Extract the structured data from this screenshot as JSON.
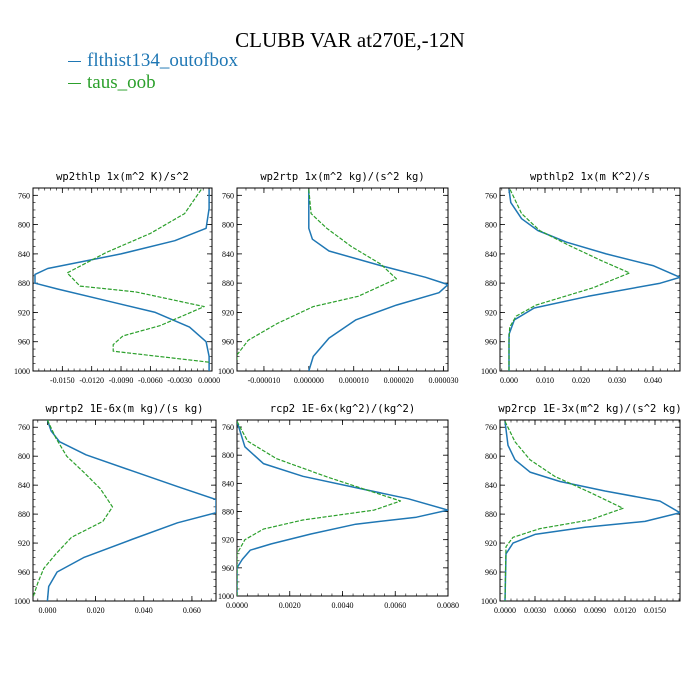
{
  "title": "CLUBB VAR at270E,-12N",
  "legend": [
    {
      "label": "flthist134_outofbox",
      "color": "#1f77b4"
    },
    {
      "label": "taus_oob",
      "color": "#2ca02c"
    }
  ],
  "chart_data": [
    {
      "type": "line",
      "title": "wp2thlp  1x(m^2 K)/s^2",
      "xlim": [
        -0.018,
        0.0003
      ],
      "ylim": [
        1000,
        750
      ],
      "xticks": [
        -0.015,
        -0.012,
        -0.009,
        -0.006,
        -0.003,
        0.0
      ],
      "xtick_labels": [
        "-0.0150",
        "-0.0120",
        "-0.0090",
        "-0.0060",
        "-0.0030",
        "0.0000"
      ],
      "yticks": [
        760,
        800,
        840,
        880,
        920,
        960,
        1000
      ],
      "ytick_labels": [
        "760",
        "800",
        "840",
        "880",
        "920",
        "960",
        "1000"
      ],
      "series": [
        {
          "name": "flthist134_outofbox",
          "x": [
            0.0,
            0.0,
            -0.0003,
            -0.0035,
            -0.009,
            -0.0165,
            -0.0178,
            -0.0178,
            -0.0155,
            -0.0105,
            -0.0055,
            -0.002,
            -0.0003,
            0.0,
            0.0,
            0.0
          ],
          "y": [
            752,
            778,
            805,
            822,
            840,
            860,
            868,
            880,
            888,
            904,
            920,
            940,
            960,
            980,
            995,
            1000
          ]
        },
        {
          "name": "taus_oob",
          "x": [
            -0.0008,
            -0.0025,
            -0.006,
            -0.0105,
            -0.0145,
            -0.0132,
            -0.0075,
            -0.0005,
            -0.005,
            -0.0088,
            -0.0098,
            -0.0098,
            0.0
          ],
          "y": [
            752,
            785,
            812,
            838,
            866,
            884,
            892,
            912,
            938,
            952,
            964,
            973,
            988
          ]
        }
      ]
    },
    {
      "type": "line",
      "title": "wp2rtp  1x(m^2 kg)/(s^2 kg)",
      "xlim": [
        -1.6e-05,
        3.1e-05
      ],
      "ylim": [
        1000,
        750
      ],
      "xticks": [
        -1e-05,
        0.0,
        1e-05,
        2e-05,
        3e-05
      ],
      "xtick_labels": [
        "-0.000010",
        "0.000000",
        "0.000010",
        "0.000020",
        "0.000030"
      ],
      "yticks": [
        760,
        800,
        840,
        880,
        920,
        960,
        1000
      ],
      "ytick_labels": [
        "760",
        "800",
        "840",
        "880",
        "920",
        "960",
        "1000"
      ],
      "series": [
        {
          "name": "flthist134_outofbox",
          "x": [
            0.0,
            0.0,
            0.0,
            8e-07,
            4.5e-06,
            1.6e-05,
            2.6e-05,
            3.1e-05,
            2.9e-05,
            1.95e-05,
            1.05e-05,
            4.5e-06,
            1e-06,
            0.0
          ],
          "y": [
            752,
            780,
            805,
            820,
            836,
            856,
            872,
            882,
            893,
            910,
            930,
            955,
            980,
            1000
          ]
        },
        {
          "name": "taus_oob",
          "x": [
            0.0,
            5e-07,
            4e-06,
            9.5e-06,
            1.6e-05,
            1.95e-05,
            1.1e-05,
            1e-06,
            -7e-06,
            -1.35e-05,
            -1.6e-05,
            -1.6e-05
          ],
          "y": [
            752,
            785,
            805,
            830,
            854,
            874,
            898,
            912,
            935,
            958,
            978,
            985
          ]
        }
      ]
    },
    {
      "type": "line",
      "title": "wpthlp2  1x(m K^2)/s",
      "xlim": [
        -0.0025,
        0.0475
      ],
      "ylim": [
        1000,
        750
      ],
      "xticks": [
        0.0,
        0.01,
        0.02,
        0.03,
        0.04
      ],
      "xtick_labels": [
        "0.000",
        "0.010",
        "0.020",
        "0.030",
        "0.040"
      ],
      "yticks": [
        760,
        800,
        840,
        880,
        920,
        960,
        1000
      ],
      "ytick_labels": [
        "760",
        "800",
        "840",
        "880",
        "920",
        "960",
        "1000"
      ],
      "series": [
        {
          "name": "flthist134_outofbox",
          "x": [
            0.0,
            0.0005,
            0.0035,
            0.008,
            0.016,
            0.027,
            0.04,
            0.0475,
            0.042,
            0.022,
            0.007,
            0.0015,
            0.0,
            0.0
          ],
          "y": [
            752,
            770,
            792,
            808,
            824,
            840,
            856,
            872,
            880,
            898,
            914,
            930,
            950,
            1000
          ]
        },
        {
          "name": "taus_oob",
          "x": [
            0.0003,
            0.0035,
            0.0085,
            0.0165,
            0.026,
            0.0335,
            0.0235,
            0.0075,
            0.002,
            0.0002,
            0.0,
            0.0
          ],
          "y": [
            752,
            785,
            808,
            828,
            850,
            866,
            886,
            910,
            925,
            940,
            960,
            1000
          ]
        }
      ]
    },
    {
      "type": "line",
      "title": "wprtp2  1E-6x(m kg)/(s kg)",
      "xlim": [
        -0.006,
        0.07
      ],
      "ylim": [
        1000,
        750
      ],
      "xticks": [
        0.0,
        0.02,
        0.04,
        0.06
      ],
      "xtick_labels": [
        "0.000",
        "0.020",
        "0.040",
        "0.060"
      ],
      "yticks": [
        760,
        800,
        840,
        880,
        920,
        960,
        1000
      ],
      "ytick_labels": [
        "760",
        "800",
        "840",
        "880",
        "920",
        "960",
        "1000"
      ],
      "series": [
        {
          "name": "flthist134_outofbox",
          "x": [
            0.0,
            0.0015,
            0.005,
            0.016,
            0.035,
            0.054,
            0.07,
            0.07,
            0.054,
            0.035,
            0.015,
            0.004,
            0.0005,
            0.0
          ],
          "y": [
            750,
            765,
            780,
            798,
            820,
            842,
            860,
            878,
            892,
            915,
            940,
            960,
            980,
            1000
          ]
        },
        {
          "name": "taus_oob",
          "x": [
            0.0,
            0.0035,
            0.008,
            0.015,
            0.022,
            0.027,
            0.023,
            0.01,
            0.0035,
            -0.0015,
            -0.004,
            -0.006
          ],
          "y": [
            750,
            775,
            800,
            822,
            845,
            870,
            890,
            912,
            935,
            955,
            975,
            995
          ]
        }
      ]
    },
    {
      "type": "line",
      "title": "rcp2  1E-6x(kg^2)/(kg^2)",
      "xlim": [
        0.0,
        0.008
      ],
      "ylim": [
        1000,
        750
      ],
      "xticks": [
        0.0,
        0.002,
        0.004,
        0.006,
        0.008
      ],
      "xtick_labels": [
        "0.0000",
        "0.0020",
        "0.0040",
        "0.0060",
        "0.0080"
      ],
      "yticks": [
        760,
        800,
        840,
        880,
        920,
        960,
        1000
      ],
      "ytick_labels": [
        "760",
        "800",
        "840",
        "880",
        "920",
        "960",
        "1000"
      ],
      "series": [
        {
          "name": "flthist134_outofbox",
          "x": [
            0.0,
            0.0003,
            0.001,
            0.0025,
            0.0045,
            0.0065,
            0.008,
            0.0068,
            0.0045,
            0.0028,
            0.0013,
            0.0005,
            0.0002,
            0.0,
            0.0
          ],
          "y": [
            752,
            788,
            812,
            830,
            846,
            862,
            878,
            888,
            898,
            912,
            926,
            935,
            948,
            960,
            1000
          ]
        },
        {
          "name": "taus_oob",
          "x": [
            0.0,
            0.0004,
            0.0015,
            0.0035,
            0.0062,
            0.0052,
            0.0025,
            0.001,
            0.0003,
            0.0,
            0.0
          ],
          "y": [
            752,
            780,
            805,
            832,
            865,
            878,
            892,
            905,
            920,
            940,
            1000
          ]
        }
      ]
    },
    {
      "type": "line",
      "title": "wp2rcp  1E-3x(m^2 kg)/(s^2 kg)",
      "xlim": [
        -0.0005,
        0.0175
      ],
      "ylim": [
        1000,
        750
      ],
      "xticks": [
        0.0,
        0.003,
        0.006,
        0.009,
        0.012,
        0.015
      ],
      "xtick_labels": [
        "0.0000",
        "0.0030",
        "0.0060",
        "0.0090",
        "0.0120",
        "0.0150"
      ],
      "yticks": [
        760,
        800,
        840,
        880,
        920,
        960,
        1000
      ],
      "ytick_labels": [
        "760",
        "800",
        "840",
        "880",
        "920",
        "960",
        "1000"
      ],
      "series": [
        {
          "name": "flthist134_outofbox",
          "x": [
            0.0,
            0.0003,
            0.001,
            0.0025,
            0.0055,
            0.01,
            0.0155,
            0.0175,
            0.014,
            0.008,
            0.003,
            0.0008,
            0.0001,
            0.0
          ],
          "y": [
            752,
            785,
            805,
            822,
            835,
            848,
            862,
            878,
            890,
            898,
            908,
            920,
            935,
            1000
          ]
        },
        {
          "name": "taus_oob",
          "x": [
            0.0,
            0.001,
            0.0025,
            0.005,
            0.0085,
            0.0118,
            0.0085,
            0.0035,
            0.0008,
            0.0001,
            0.0
          ],
          "y": [
            752,
            780,
            805,
            828,
            850,
            872,
            888,
            900,
            912,
            925,
            1000
          ]
        }
      ]
    }
  ]
}
